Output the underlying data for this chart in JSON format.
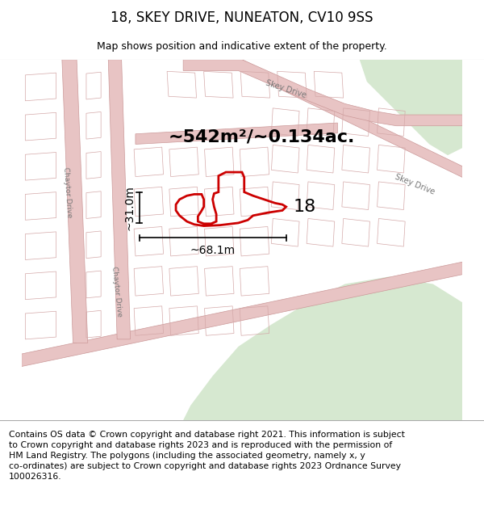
{
  "title": "18, SKEY DRIVE, NUNEATON, CV10 9SS",
  "subtitle": "Map shows position and indicative extent of the property.",
  "footer": "Contains OS data © Crown copyright and database right 2021. This information is subject\nto Crown copyright and database rights 2023 and is reproduced with the permission of\nHM Land Registry. The polygons (including the associated geometry, namely x, y\nco-ordinates) are subject to Crown copyright and database rights 2023 Ordnance Survey\n100026316.",
  "map_bg": "#f2ede8",
  "road_fill": "#e8c4c4",
  "road_edge": "#cc9999",
  "green_fill": "#d6e8d0",
  "prop_color": "#cc0000",
  "building_edge": "#d4a8a8",
  "ann_area": "~542m²/~0.134ac.",
  "ann_w": "~68.1m",
  "ann_h": "~31.0m",
  "label_18": "18",
  "title_fs": 12,
  "sub_fs": 9,
  "footer_fs": 7.8,
  "ann_fs": 16,
  "dim_fs": 10
}
